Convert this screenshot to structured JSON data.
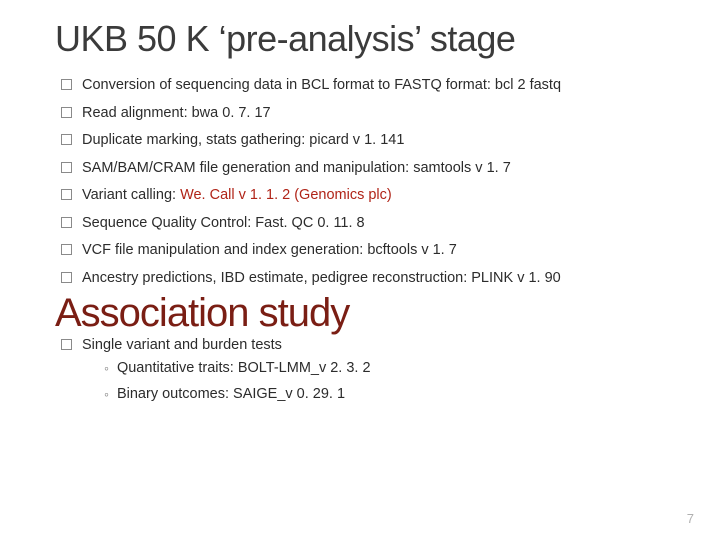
{
  "title": "UKB 50 K ‘pre-analysis’ stage",
  "bullets": [
    {
      "pre": "Conversion of sequencing data in BCL format to FASTQ format: ",
      "em": "bcl 2 fastq",
      "post": ""
    },
    {
      "pre": "Read alignment: bwa 0. 7. 17",
      "em": "",
      "post": ""
    },
    {
      "pre": "Duplicate marking, stats gathering: picard v 1. 141",
      "em": "",
      "post": ""
    },
    {
      "pre": "SAM/BAM/CRAM file generation and manipulation: samtools v 1. 7",
      "em": "",
      "post": ""
    },
    {
      "pre": "Variant calling: ",
      "em": "",
      "post": "",
      "red": "We. Call v 1. 1. 2 (Genomics plc)"
    },
    {
      "pre": "Sequence Quality Control: Fast. QC 0. 11. 8",
      "em": "",
      "post": ""
    },
    {
      "pre": "VCF file manipulation and index generation: bcftools v 1. 7",
      "em": "",
      "post": ""
    },
    {
      "pre": "Ancestry predictions, IBD estimate, pedigree reconstruction: PLINK v 1. 90",
      "em": "",
      "post": ""
    }
  ],
  "section_title": "Association study",
  "assoc": {
    "lead": "Single variant and burden tests",
    "sub": [
      "Quantitative traits: BOLT-LMM_v 2. 3. 2",
      "Binary outcomes: SAIGE_v 0. 29. 1"
    ]
  },
  "page_number": "7",
  "colors": {
    "title": "#3b3b3b",
    "text": "#2c2c2c",
    "red": "#b02418",
    "section_title": "#7a1e14",
    "page_num": "#b0b0b0",
    "bullet_border": "#8a8a8a",
    "sub_bullet": "#7c7c7c"
  }
}
